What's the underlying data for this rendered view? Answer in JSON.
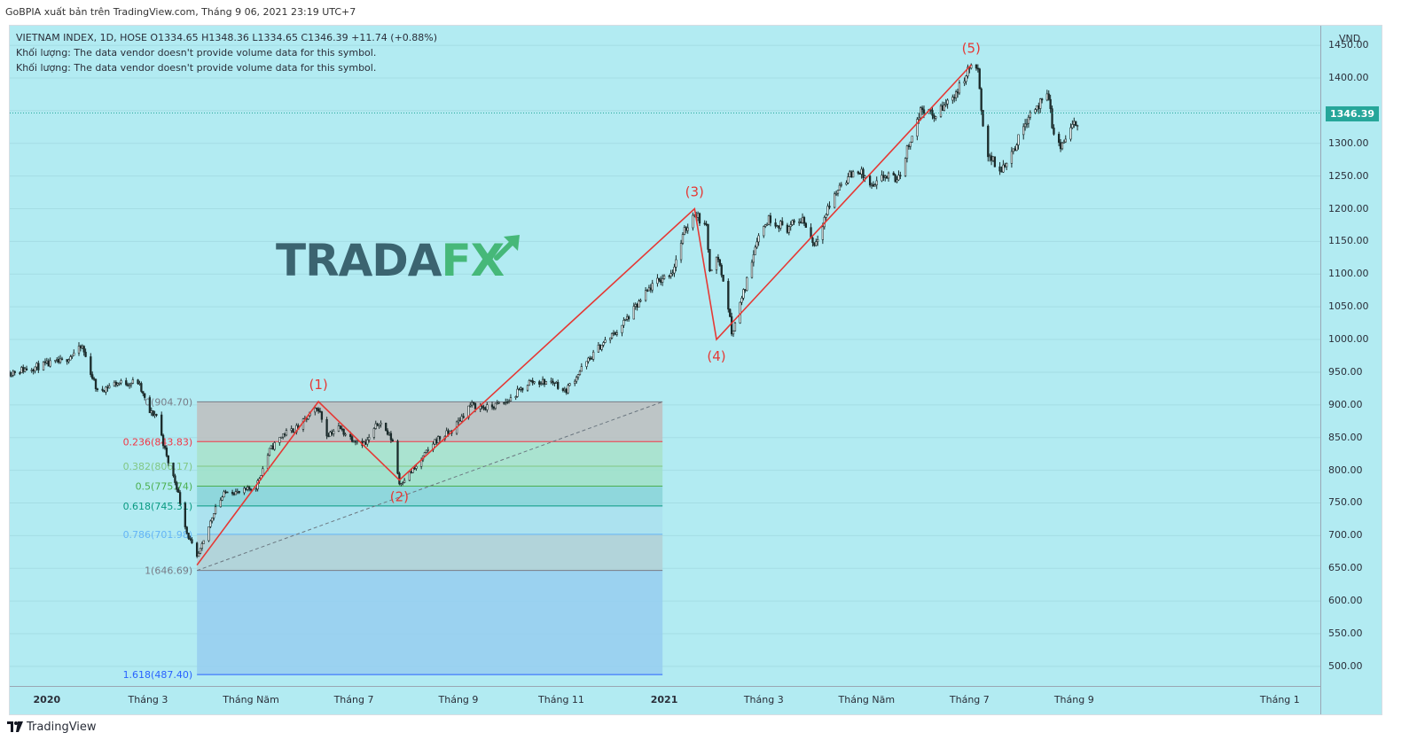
{
  "header": {
    "publish_line": "GoBPIA xuất bản trên TradingView.com, Tháng 9 06, 2021 23:19 UTC+7"
  },
  "legend": {
    "symbol_line": "VIETNAM INDEX, 1D, HOSE  O1334.65  H1348.36  L1334.65  C1346.39  +11.74 (+0.88%)",
    "volume_line_1": "Khối lượng: The data vendor doesn't provide volume data for this symbol.",
    "volume_line_2": "Khối lượng: The data vendor doesn't provide volume data for this symbol."
  },
  "watermark": {
    "part1": "TRADA",
    "part2": "FX",
    "arrow_icon": "arrow-up-right-icon"
  },
  "colors": {
    "background": "#b2ebf2",
    "candle": "#1b2b2b",
    "wave_line": "#e53935",
    "price_badge": "#26a69a"
  },
  "footer": {
    "brand": "TradingView",
    "logo_icon": "tradingview-logo-icon"
  },
  "chart_data": {
    "type": "candlestick",
    "symbol": "VIETNAM INDEX",
    "interval": "1D",
    "exchange": "HOSE",
    "currency": "VND",
    "ohlc_last": {
      "open": 1334.65,
      "high": 1348.36,
      "low": 1334.65,
      "close": 1346.39,
      "change": "+11.74",
      "change_pct": "+0.88%"
    },
    "last_price_label": "1346.39",
    "ylim": [
      470,
      1480
    ],
    "y_ticks": [
      "1450.00",
      "1400.00",
      "1350.00",
      "1300.00",
      "1250.00",
      "1200.00",
      "1150.00",
      "1100.00",
      "1050.00",
      "1000.00",
      "950.00",
      "900.00",
      "850.00",
      "800.00",
      "750.00",
      "700.00",
      "650.00",
      "600.00",
      "550.00",
      "500.00"
    ],
    "x_ticks": [
      {
        "label": "2020",
        "date": "2020-01-01",
        "bold": true
      },
      {
        "label": "Tháng 3",
        "date": "2020-03-01"
      },
      {
        "label": "Tháng Năm",
        "date": "2020-05-01"
      },
      {
        "label": "Tháng 7",
        "date": "2020-07-01"
      },
      {
        "label": "Tháng 9",
        "date": "2020-09-01"
      },
      {
        "label": "Tháng 11",
        "date": "2020-11-01"
      },
      {
        "label": "2021",
        "date": "2021-01-01",
        "bold": true
      },
      {
        "label": "Tháng 3",
        "date": "2021-03-01"
      },
      {
        "label": "Tháng Năm",
        "date": "2021-05-01"
      },
      {
        "label": "Tháng 7",
        "date": "2021-07-01"
      },
      {
        "label": "Tháng 9",
        "date": "2021-09-01"
      },
      {
        "label": "Tháng 1",
        "date": "2022-01-01"
      }
    ],
    "price_path": [
      [
        "2019-12-10",
        950
      ],
      [
        "2020-01-02",
        962
      ],
      [
        "2020-01-10",
        966
      ],
      [
        "2020-01-22",
        988
      ],
      [
        "2020-01-31",
        920
      ],
      [
        "2020-02-10",
        933
      ],
      [
        "2020-02-24",
        935
      ],
      [
        "2020-03-02",
        888
      ],
      [
        "2020-03-06",
        885
      ],
      [
        "2020-03-12",
        820
      ],
      [
        "2020-03-18",
        775
      ],
      [
        "2020-03-24",
        705
      ],
      [
        "2020-03-30",
        665
      ],
      [
        "2020-04-03",
        690
      ],
      [
        "2020-04-10",
        745
      ],
      [
        "2020-04-17",
        770
      ],
      [
        "2020-04-24",
        765
      ],
      [
        "2020-05-04",
        775
      ],
      [
        "2020-05-12",
        830
      ],
      [
        "2020-05-20",
        855
      ],
      [
        "2020-05-29",
        865
      ],
      [
        "2020-06-05",
        885
      ],
      [
        "2020-06-10",
        895
      ],
      [
        "2020-06-15",
        855
      ],
      [
        "2020-06-22",
        865
      ],
      [
        "2020-06-29",
        850
      ],
      [
        "2020-07-08",
        840
      ],
      [
        "2020-07-16",
        875
      ],
      [
        "2020-07-24",
        845
      ],
      [
        "2020-07-28",
        780
      ],
      [
        "2020-08-07",
        805
      ],
      [
        "2020-08-18",
        845
      ],
      [
        "2020-08-28",
        860
      ],
      [
        "2020-09-08",
        900
      ],
      [
        "2020-09-18",
        895
      ],
      [
        "2020-09-30",
        905
      ],
      [
        "2020-10-13",
        935
      ],
      [
        "2020-10-28",
        935
      ],
      [
        "2020-11-03",
        920
      ],
      [
        "2020-11-13",
        955
      ],
      [
        "2020-11-24",
        990
      ],
      [
        "2020-12-03",
        1010
      ],
      [
        "2020-12-14",
        1045
      ],
      [
        "2020-12-24",
        1080
      ],
      [
        "2021-01-06",
        1105
      ],
      [
        "2021-01-13",
        1165
      ],
      [
        "2021-01-19",
        1195
      ],
      [
        "2021-01-26",
        1170
      ],
      [
        "2021-01-28",
        1110
      ],
      [
        "2021-02-02",
        1125
      ],
      [
        "2021-02-08",
        1050
      ],
      [
        "2021-02-10",
        1010
      ],
      [
        "2021-02-18",
        1080
      ],
      [
        "2021-02-25",
        1155
      ],
      [
        "2021-03-04",
        1185
      ],
      [
        "2021-03-15",
        1170
      ],
      [
        "2021-03-24",
        1185
      ],
      [
        "2021-03-31",
        1145
      ],
      [
        "2021-04-08",
        1200
      ],
      [
        "2021-04-16",
        1240
      ],
      [
        "2021-04-26",
        1260
      ],
      [
        "2021-05-05",
        1230
      ],
      [
        "2021-05-11",
        1250
      ],
      [
        "2021-05-20",
        1245
      ],
      [
        "2021-05-26",
        1300
      ],
      [
        "2021-06-03",
        1355
      ],
      [
        "2021-06-10",
        1340
      ],
      [
        "2021-06-17",
        1360
      ],
      [
        "2021-06-25",
        1385
      ],
      [
        "2021-07-02",
        1420
      ],
      [
        "2021-07-06",
        1410
      ],
      [
        "2021-07-08",
        1345
      ],
      [
        "2021-07-12",
        1285
      ],
      [
        "2021-07-19",
        1255
      ],
      [
        "2021-07-23",
        1275
      ],
      [
        "2021-07-29",
        1300
      ],
      [
        "2021-08-05",
        1345
      ],
      [
        "2021-08-12",
        1360
      ],
      [
        "2021-08-17",
        1370
      ],
      [
        "2021-08-20",
        1310
      ],
      [
        "2021-08-24",
        1295
      ],
      [
        "2021-08-30",
        1320
      ],
      [
        "2021-09-06",
        1346.39
      ]
    ],
    "elliott_waves": [
      {
        "label": "",
        "date": "2020-03-30",
        "price": 655
      },
      {
        "label": "(1)",
        "date": "2020-06-10",
        "price": 905
      },
      {
        "label": "(2)",
        "date": "2020-07-28",
        "price": 785
      },
      {
        "label": "(3)",
        "date": "2021-01-19",
        "price": 1200
      },
      {
        "label": "(4)",
        "date": "2021-02-01",
        "price": 1000
      },
      {
        "label": "(5)",
        "date": "2021-07-02",
        "price": 1420
      }
    ],
    "fibonacci": {
      "from_date": "2020-03-30",
      "to_date": "2020-12-31",
      "levels": [
        {
          "label": "0(904.70)",
          "price": 904.7,
          "color": "#787b86",
          "fill": "rgba(190,190,190,0.85)"
        },
        {
          "label": "0.236(843.83)",
          "price": 843.83,
          "color": "#f23645",
          "fill": "rgba(168,226,202,0.85)"
        },
        {
          "label": "0.382(806.17)",
          "price": 806.17,
          "color": "#81c784",
          "fill": "rgba(160,224,200,0.85)"
        },
        {
          "label": "0.5(775.74)",
          "price": 775.74,
          "color": "#4caf50",
          "fill": "rgba(136,212,216,0.85)"
        },
        {
          "label": "0.618(745.31)",
          "price": 745.31,
          "color": "#089981",
          "fill": "rgba(170,224,238,0.85)"
        },
        {
          "label": "0.786(701.98)",
          "price": 701.98,
          "color": "#64b5f6",
          "fill": "rgba(178,208,214,0.85)"
        },
        {
          "label": "1(646.69)",
          "price": 646.69,
          "color": "#787b86",
          "fill": "rgba(150,206,240,0.85)"
        },
        {
          "label": "1.618(487.40)",
          "price": 487.4,
          "color": "#2962ff",
          "fill": "rgba(190,190,190,0.85)"
        }
      ]
    },
    "trend_line": {
      "from": {
        "date": "2020-03-30",
        "price": 646.69
      },
      "to": {
        "date": "2020-12-31",
        "price": 904.7
      }
    }
  }
}
